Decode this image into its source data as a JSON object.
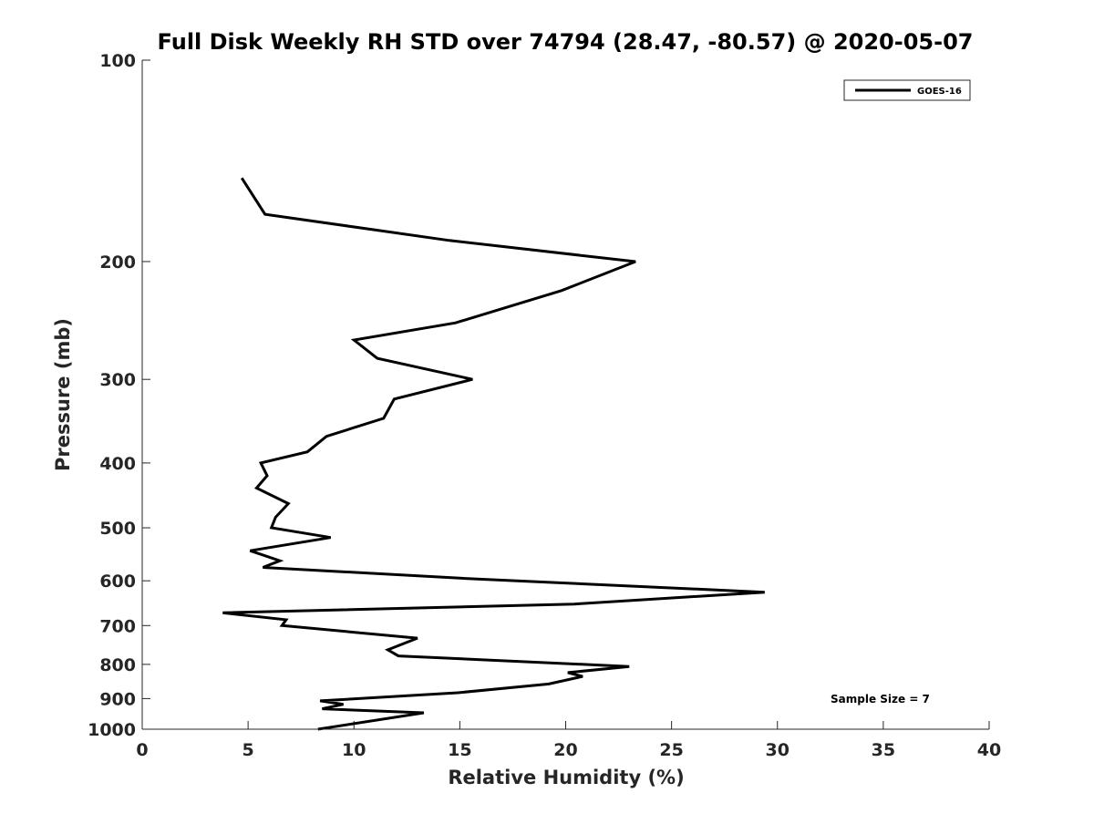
{
  "chart_data": {
    "type": "line",
    "title": "Full Disk Weekly RH STD over 74794 (28.47, -80.57) @ 2020-05-07",
    "xlabel": "Relative Humidity (%)",
    "ylabel": "Pressure (mb)",
    "xlim": [
      0,
      40
    ],
    "ylim": [
      100,
      1000
    ],
    "y_scale": "log",
    "y_reversed": true,
    "x_ticks": [
      0,
      5,
      10,
      15,
      20,
      25,
      30,
      35,
      40
    ],
    "y_ticks": [
      100,
      200,
      300,
      400,
      500,
      600,
      700,
      800,
      900,
      1000
    ],
    "grid": false,
    "legend_position": "top-right",
    "annotation": "Sample Size = 7",
    "series": [
      {
        "name": "GOES-16",
        "color": "#000000",
        "points": [
          [
            4.7,
            150
          ],
          [
            5.8,
            170
          ],
          [
            14.5,
            186
          ],
          [
            23.3,
            200
          ],
          [
            19.8,
            221
          ],
          [
            14.8,
            247
          ],
          [
            10.0,
            262
          ],
          [
            11.1,
            279
          ],
          [
            15.6,
            300
          ],
          [
            11.9,
            321
          ],
          [
            11.4,
            343
          ],
          [
            8.7,
            365
          ],
          [
            7.8,
            385
          ],
          [
            5.6,
            400
          ],
          [
            5.9,
            418
          ],
          [
            5.4,
            436
          ],
          [
            6.9,
            460
          ],
          [
            6.3,
            482
          ],
          [
            6.1,
            500
          ],
          [
            8.9,
            517
          ],
          [
            5.1,
            541
          ],
          [
            6.5,
            560
          ],
          [
            5.7,
            573
          ],
          [
            15.6,
            596
          ],
          [
            29.4,
            624
          ],
          [
            20.4,
            650
          ],
          [
            3.8,
            670
          ],
          [
            6.8,
            686
          ],
          [
            6.6,
            700
          ],
          [
            13.0,
            731
          ],
          [
            11.6,
            761
          ],
          [
            12.1,
            777
          ],
          [
            23.0,
            806
          ],
          [
            20.1,
            823
          ],
          [
            20.8,
            834
          ],
          [
            19.2,
            856
          ],
          [
            14.9,
            882
          ],
          [
            8.4,
            907
          ],
          [
            9.5,
            918
          ],
          [
            8.5,
            932
          ],
          [
            13.3,
            945
          ],
          [
            8.3,
            1000
          ]
        ]
      }
    ]
  }
}
